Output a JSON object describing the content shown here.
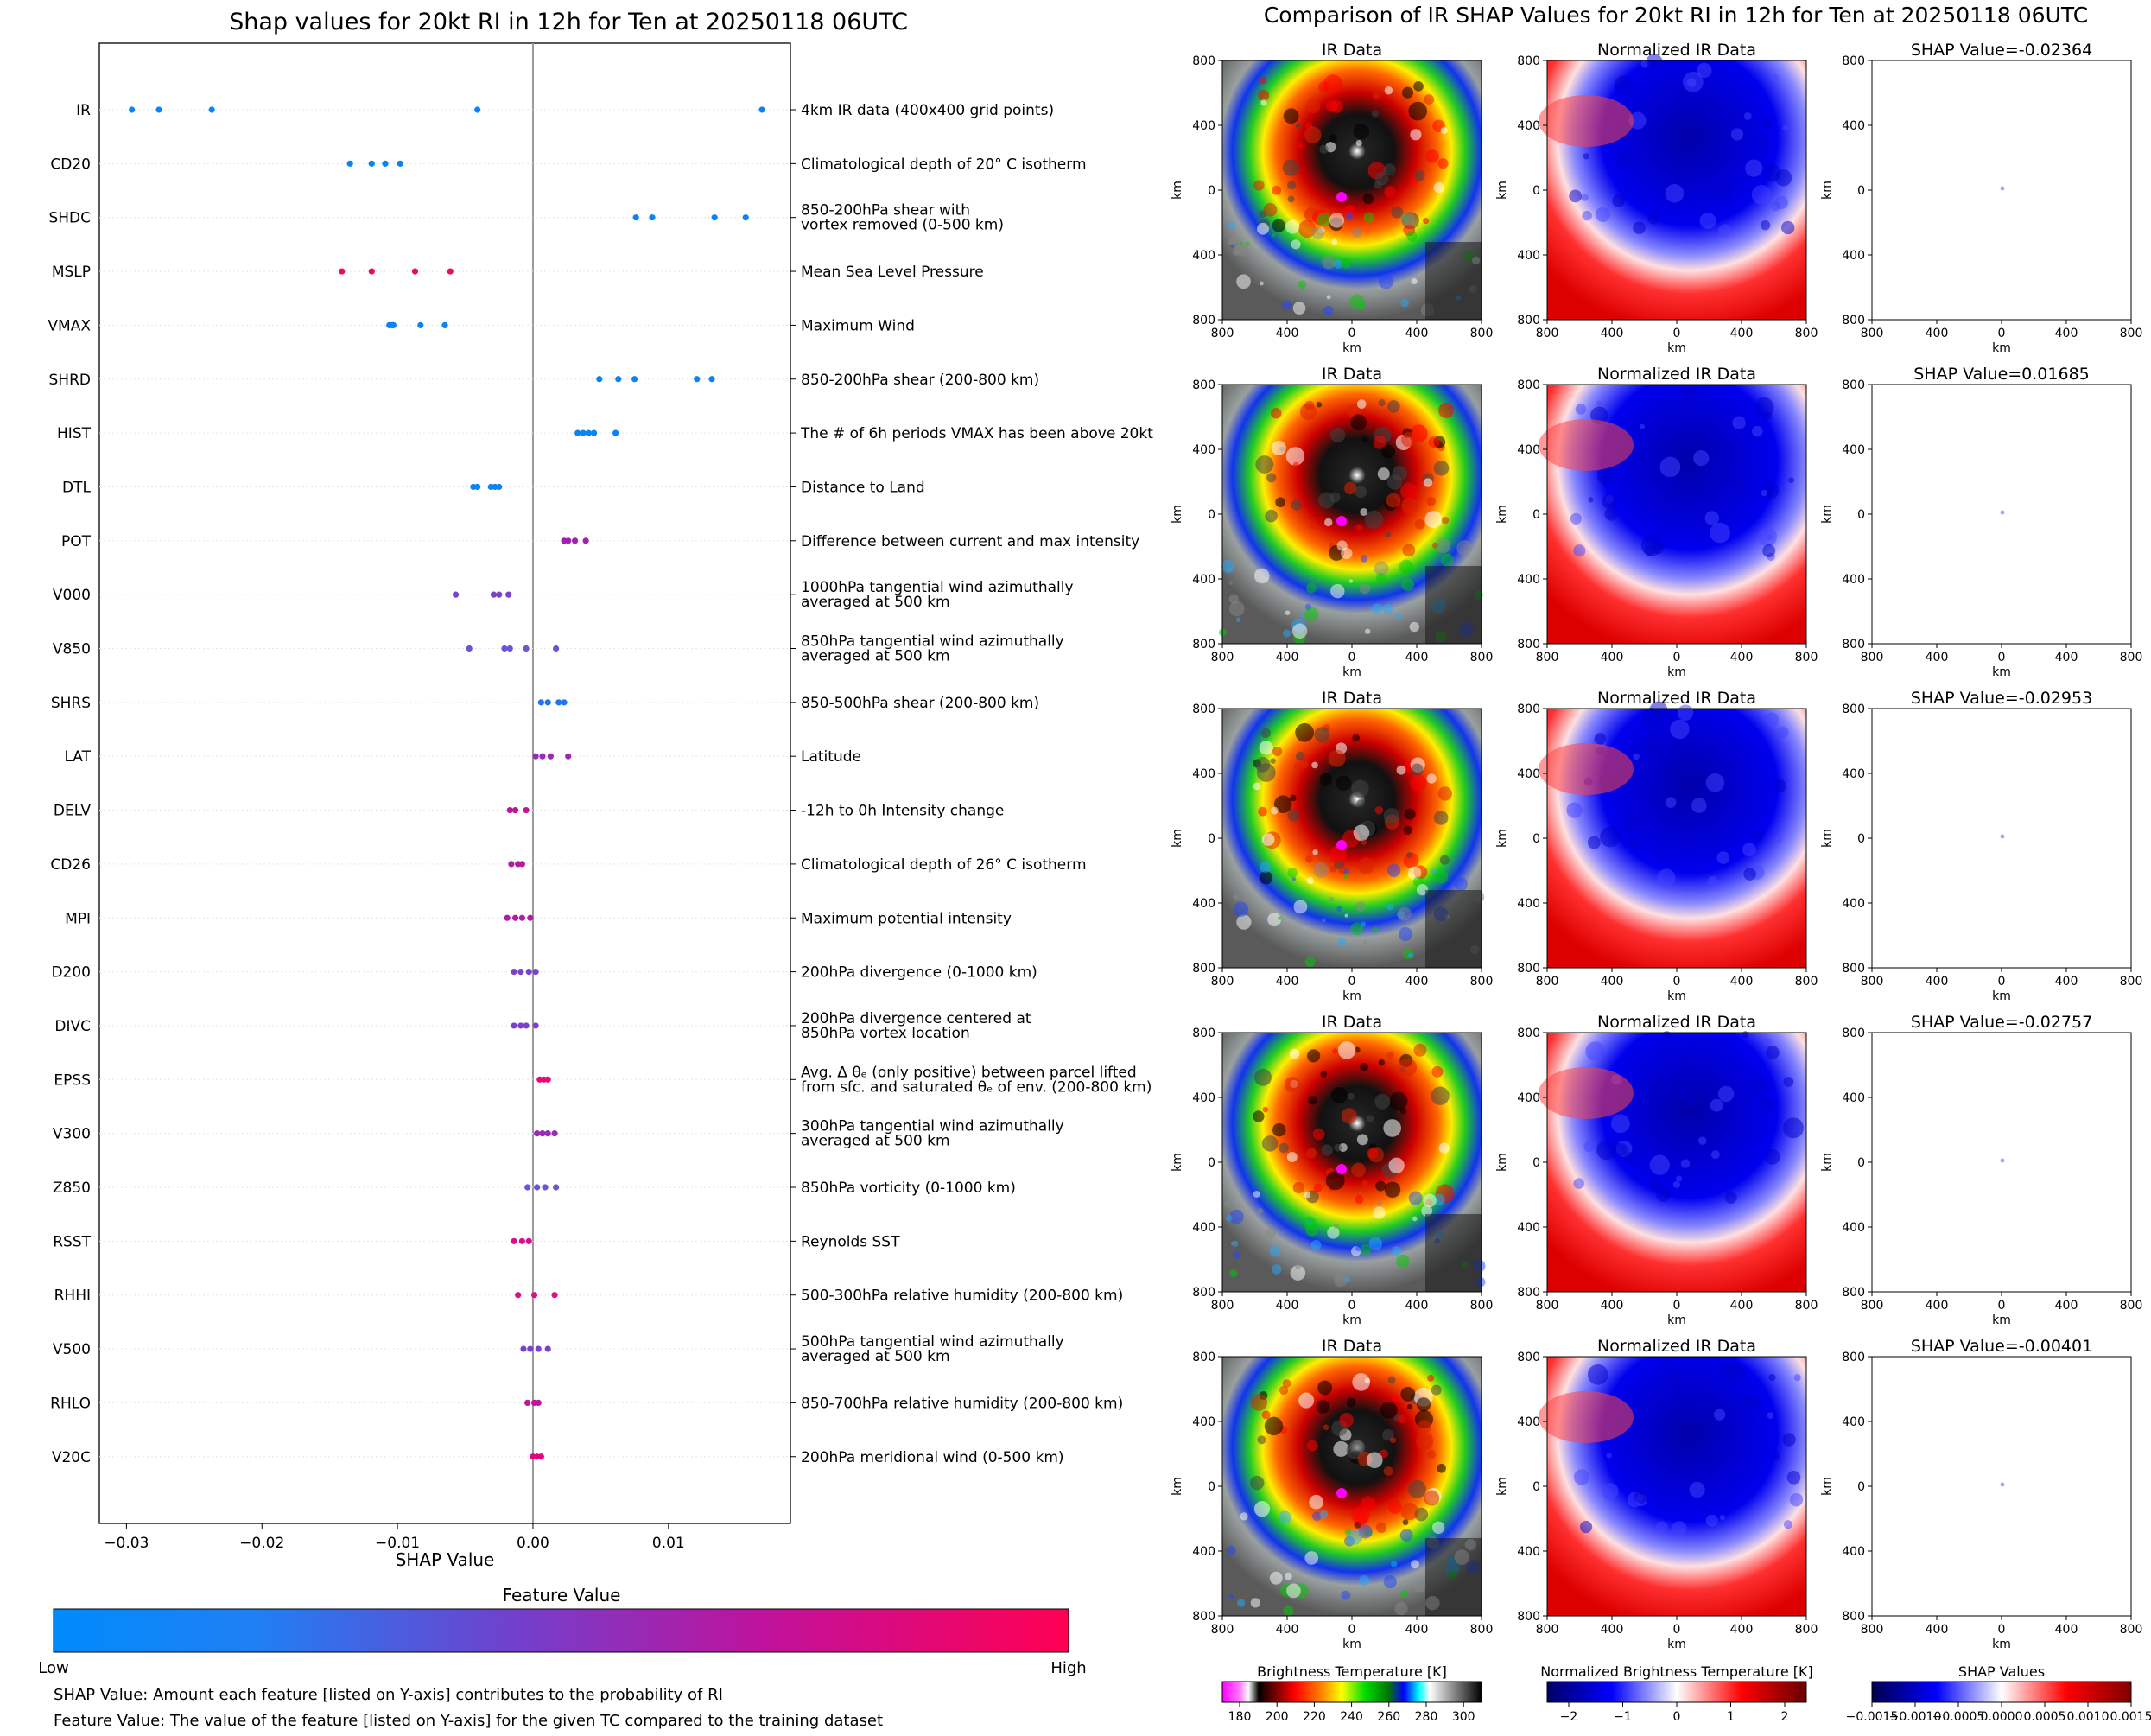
{
  "left_title": "Shap values for 20kt RI in 12h for Ten at 20250118 06UTC",
  "right_title": "Comparison of IR SHAP Values for 20kt RI in 12h for Ten at 20250118 06UTC",
  "colorbar": {
    "title": "Feature Value",
    "low": "Low",
    "high": "High",
    "colors": [
      "#008bfb",
      "#6a55d6",
      "#a91ea0",
      "#ff0052"
    ]
  },
  "footnotes": [
    "SHAP Value: Amount each feature [listed on Y-axis] contributes to the probability of RI",
    "Feature Value: The value of the feature [listed on Y-axis] for the given TC compared to the training dataset"
  ],
  "chart_data": [
    {
      "type": "scatter",
      "title": "Shap values for 20kt RI in 12h for Ten at 20250118 06UTC",
      "xlabel": "SHAP Value",
      "xlim": [
        -0.032,
        0.019
      ],
      "xticks": [
        -0.03,
        -0.02,
        -0.01,
        0.0,
        0.01
      ],
      "xtick_labels": [
        "−0.03",
        "−0.02",
        "−0.01",
        "0.00",
        "0.01"
      ],
      "grid": "horizontal dotted",
      "features": [
        {
          "name": "IR",
          "desc": [
            "4km IR data (400x400 grid points)"
          ],
          "color": "#0a84f2",
          "x": [
            -0.0296,
            -0.0276,
            -0.0237,
            -0.0041,
            0.0169
          ]
        },
        {
          "name": "CD20",
          "desc": [
            "Climatological depth of 20° C isotherm"
          ],
          "color": "#0a84f2",
          "x": [
            -0.0135,
            -0.0119,
            -0.0109,
            -0.0098
          ]
        },
        {
          "name": "SHDC",
          "desc": [
            "850-200hPa shear with",
            "vortex removed (0-500 km)"
          ],
          "color": "#0a84f2",
          "x": [
            0.0076,
            0.0088,
            0.0134,
            0.0157
          ]
        },
        {
          "name": "MSLP",
          "desc": [
            "Mean Sea Level Pressure"
          ],
          "color": "#ee0a60",
          "x": [
            -0.0141,
            -0.0119,
            -0.0087,
            -0.0061
          ]
        },
        {
          "name": "VMAX",
          "desc": [
            "Maximum Wind"
          ],
          "color": "#0a84f2",
          "x": [
            -0.0106,
            -0.0104,
            -0.0103,
            -0.0083,
            -0.0065
          ]
        },
        {
          "name": "SHRD",
          "desc": [
            "850-200hPa shear (200-800 km)"
          ],
          "color": "#0a84f2",
          "x": [
            0.0049,
            0.0063,
            0.0075,
            0.0121,
            0.0132
          ]
        },
        {
          "name": "HIST",
          "desc": [
            "The # of 6h periods VMAX has been above 20kt"
          ],
          "color": "#0a84f2",
          "x": [
            0.0033,
            0.0037,
            0.0041,
            0.0045,
            0.0061
          ]
        },
        {
          "name": "DTL",
          "desc": [
            "Distance to Land"
          ],
          "color": "#0a84f2",
          "x": [
            -0.0044,
            -0.0041,
            -0.0031,
            -0.0028,
            -0.0025
          ]
        },
        {
          "name": "POT",
          "desc": [
            "Difference between current and max intensity"
          ],
          "color": "#a020b0",
          "x": [
            0.0023,
            0.0026,
            0.0031,
            0.0039
          ]
        },
        {
          "name": "V000",
          "desc": [
            "1000hPa tangential wind azimuthally",
            "averaged at 500 km"
          ],
          "color": "#7b40cc",
          "x": [
            -0.0057,
            -0.0029,
            -0.0025,
            -0.0018
          ]
        },
        {
          "name": "V850",
          "desc": [
            "850hPa tangential wind azimuthally",
            "averaged at 500 km"
          ],
          "color": "#6a55d6",
          "x": [
            -0.0047,
            -0.0021,
            -0.0017,
            -0.0005,
            0.0017
          ]
        },
        {
          "name": "SHRS",
          "desc": [
            "850-500hPa shear (200-800 km)"
          ],
          "color": "#2076ea",
          "x": [
            0.0006,
            0.0011,
            0.0019,
            0.0023
          ]
        },
        {
          "name": "LAT",
          "desc": [
            "Latitude"
          ],
          "color": "#9a2ab8",
          "x": [
            0.0002,
            0.0007,
            0.0013,
            0.0026
          ]
        },
        {
          "name": "DELV",
          "desc": [
            "-12h to 0h Intensity change"
          ],
          "color": "#c0149a",
          "x": [
            -0.0017,
            -0.0013,
            -0.0005
          ]
        },
        {
          "name": "CD26",
          "desc": [
            "Climatological depth of 26° C isotherm"
          ],
          "color": "#b01ca6",
          "x": [
            -0.0016,
            -0.0011,
            -0.0008
          ]
        },
        {
          "name": "MPI",
          "desc": [
            "Maximum potential intensity"
          ],
          "color": "#b01ca6",
          "x": [
            -0.0019,
            -0.0013,
            -0.0008,
            -0.0002
          ]
        },
        {
          "name": "D200",
          "desc": [
            "200hPa divergence (0-1000 km)"
          ],
          "color": "#7b40cc",
          "x": [
            -0.0014,
            -0.0009,
            -0.0003,
            0.0002
          ]
        },
        {
          "name": "DIVC",
          "desc": [
            "200hPa divergence centered at",
            "850hPa vortex location"
          ],
          "color": "#7b40cc",
          "x": [
            -0.0014,
            -0.0009,
            -0.0005,
            0.0002
          ]
        },
        {
          "name": "EPSS",
          "desc": [
            "Avg. Δ θₑ (only positive) between parcel lifted",
            "from sfc. and saturated θₑ of env. (200-800 km)"
          ],
          "color": "#e8087a",
          "x": [
            0.0005,
            0.0008,
            0.0011
          ]
        },
        {
          "name": "V300",
          "desc": [
            "300hPa tangential wind azimuthally",
            "averaged at 500 km"
          ],
          "color": "#9a2ab8",
          "x": [
            0.0003,
            0.0007,
            0.0011,
            0.0016
          ]
        },
        {
          "name": "Z850",
          "desc": [
            "850hPa vorticity (0-1000 km)"
          ],
          "color": "#6a55d6",
          "x": [
            -0.0004,
            0.0003,
            0.0009,
            0.0017
          ]
        },
        {
          "name": "RSST",
          "desc": [
            "Reynolds SST"
          ],
          "color": "#d81090",
          "x": [
            -0.0014,
            -0.0008,
            -0.0003
          ]
        },
        {
          "name": "RHHI",
          "desc": [
            "500-300hPa relative humidity (200-800 km)"
          ],
          "color": "#d81090",
          "x": [
            -0.0011,
            0.0001,
            0.0016
          ]
        },
        {
          "name": "V500",
          "desc": [
            "500hPa tangential wind azimuthally",
            "averaged at 500 km"
          ],
          "color": "#7b40cc",
          "x": [
            -0.0007,
            -0.0002,
            0.0004,
            0.0011
          ]
        },
        {
          "name": "RHLO",
          "desc": [
            "850-700hPa relative humidity (200-800 km)"
          ],
          "color": "#c0149a",
          "x": [
            -0.0004,
            0.0001,
            0.0004
          ]
        },
        {
          "name": "V20C",
          "desc": [
            "200hPa meridional wind (0-500 km)"
          ],
          "color": "#e0087e",
          "x": [
            0.0,
            0.0003,
            0.0006
          ]
        }
      ]
    },
    {
      "type": "heatmap",
      "title": "Comparison of IR SHAP Values for 20kt RI in 12h for Ten at 20250118 06UTC",
      "columns": [
        "IR Data",
        "Normalized IR Data",
        "SHAP"
      ],
      "shap_values": [
        "SHAP Value=-0.02364",
        "SHAP Value=0.01685",
        "SHAP Value=-0.02953",
        "SHAP Value=-0.02757",
        "SHAP Value=-0.00401"
      ],
      "axis_ticks": [
        "800",
        "400",
        "0",
        "400",
        "800"
      ],
      "axis_unit": "km",
      "colorbars": [
        {
          "label": "Brightness Temperature [K]",
          "ticks": [
            "180",
            "200",
            "220",
            "240",
            "260",
            "280",
            "300"
          ]
        },
        {
          "label": "Normalized Brightness Temperature [K]",
          "ticks": [
            "−2",
            "−1",
            "0",
            "1",
            "2"
          ]
        },
        {
          "label": "SHAP Values",
          "ticks": [
            "−0.0015",
            "−0.0010",
            "−0.0005",
            "0.0000",
            "0.0005",
            "0.0010",
            "0.0015"
          ]
        }
      ]
    }
  ]
}
